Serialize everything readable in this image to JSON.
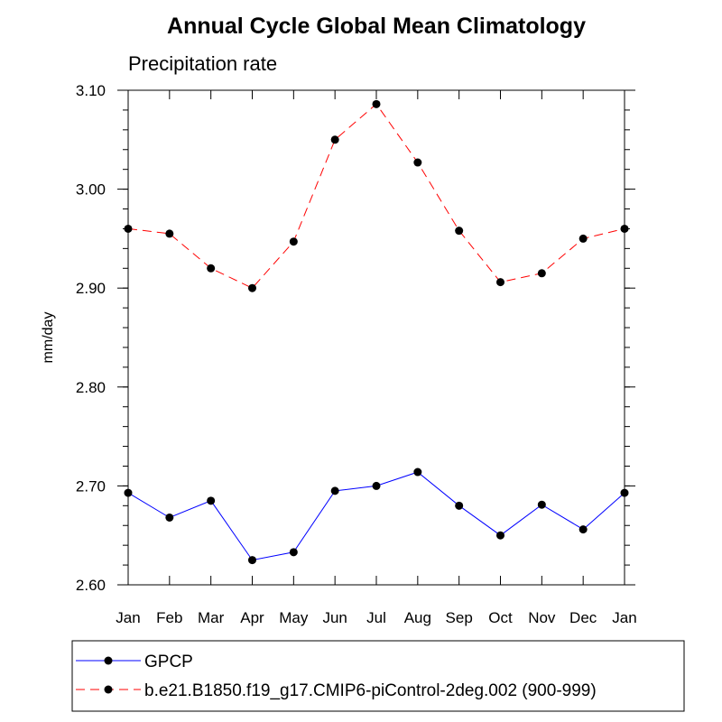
{
  "chart_data": {
    "type": "line",
    "title": "Annual Cycle Global Mean Climatology",
    "subtitle": "Precipitation rate",
    "xlabel": "",
    "ylabel": "mm/day",
    "categories": [
      "Jan",
      "Feb",
      "Mar",
      "Apr",
      "May",
      "Jun",
      "Jul",
      "Aug",
      "Sep",
      "Oct",
      "Nov",
      "Dec",
      "Jan"
    ],
    "ylim": [
      2.6,
      3.1
    ],
    "yticks": [
      "2.60",
      "2.70",
      "2.80",
      "2.90",
      "3.00",
      "3.10"
    ],
    "yminor_step": 0.02,
    "grid": false,
    "legend_position": "bottom",
    "series": [
      {
        "name": "GPCP",
        "color": "#0000ff",
        "dash": "solid",
        "marker": "filled-circle",
        "values": [
          2.693,
          2.668,
          2.685,
          2.625,
          2.633,
          2.695,
          2.7,
          2.714,
          2.68,
          2.65,
          2.681,
          2.656,
          2.693
        ]
      },
      {
        "name": "b.e21.B1850.f19_g17.CMIP6-piControl-2deg.002 (900-999)",
        "color": "#ff0000",
        "dash": "dashed",
        "marker": "filled-circle",
        "values": [
          2.96,
          2.955,
          2.92,
          2.9,
          2.947,
          3.05,
          3.086,
          3.027,
          2.958,
          2.906,
          2.915,
          2.95,
          2.96
        ]
      }
    ]
  }
}
